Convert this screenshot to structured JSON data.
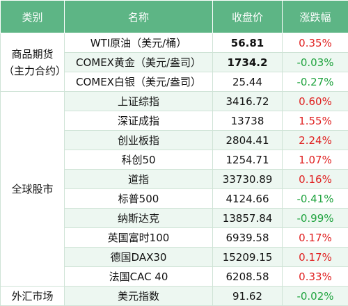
{
  "table": {
    "header": [
      "类别",
      "名称",
      "收盘价",
      "涨跌幅"
    ],
    "groups": [
      {
        "category": "商品期货（主力合约）",
        "rows": [
          [
            "WTI原油（美元/桶）",
            "56.81",
            "0.35%"
          ],
          [
            "COMEX黄金（美元/盎司）",
            "1734.2",
            "-0.03%"
          ],
          [
            "COMEX白银（美元/盎司）",
            "25.44",
            "-0.27%"
          ]
        ]
      },
      {
        "category": "全球股市",
        "rows": [
          [
            "上证综指",
            "3416.72",
            "0.60%"
          ],
          [
            "深证成指",
            "13738",
            "1.55%"
          ],
          [
            "创业板指",
            "2804.41",
            "2.24%"
          ],
          [
            "科创50",
            "1254.71",
            "1.07%"
          ],
          [
            "道指",
            "33730.89",
            "0.16%"
          ],
          [
            "标普500",
            "4124.66",
            "-0.41%"
          ],
          [
            "纳斯达克",
            "13857.84",
            "-0.99%"
          ],
          [
            "英国富时100",
            "6939.58",
            "0.17%"
          ],
          [
            "德国DAX30",
            "15209.15",
            "0.17%"
          ],
          [
            "法国CAC 40",
            "6208.58",
            "0.33%"
          ]
        ]
      },
      {
        "category": "外汇市场",
        "rows": [
          [
            "美元指数",
            "91.62",
            "-0.02%"
          ]
        ]
      }
    ]
  }
}
